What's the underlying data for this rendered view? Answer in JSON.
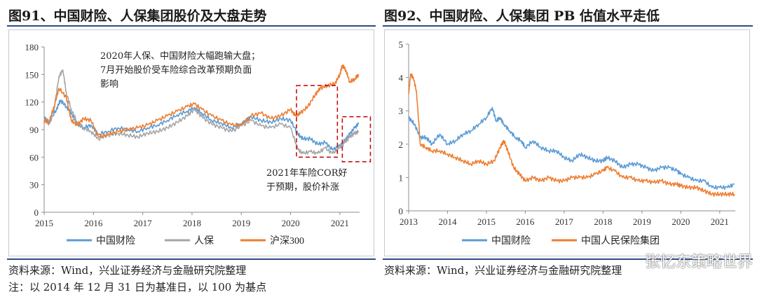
{
  "left": {
    "title": "图91、中国财险、人保集团股价及大盘走势",
    "source": "资料来源：Wind，兴业证券经济与金融研究院整理",
    "note": "注：以 2014 年 12 月 31 日为基准日，以 100 为基点",
    "annotation1": [
      "2020年人保、中国财险大幅跑输大盘；",
      "7月开始股价受车险综合改革预期负面",
      "影响"
    ],
    "annotation2": [
      "2021年车险COR好",
      "于预期，股价补涨"
    ]
  },
  "right": {
    "title": "图92、中国财险、人保集团 PB 估值水平走低",
    "source": "资料来源：Wind，兴业证券经济与金融研究院整理"
  },
  "watermark": "张忆东策略世界",
  "colors": {
    "blue": "#5b9bd5",
    "gray": "#a5a5a5",
    "orange": "#ed7d31",
    "highlight": "#c00000"
  },
  "chart_data": [
    {
      "type": "line",
      "title": "图91、中国财险、人保集团股价及大盘走势",
      "x_ticks": [
        "2015",
        "2016",
        "2017",
        "2018",
        "2019",
        "2020",
        "2021"
      ],
      "xlim": [
        2015.0,
        2021.4
      ],
      "ylim": [
        0,
        180
      ],
      "y_ticks": [
        0,
        30,
        60,
        90,
        120,
        150,
        180
      ],
      "legend_position": "bottom",
      "series": [
        {
          "name": "中国财险",
          "color": "#5b9bd5",
          "x": [
            2015.0,
            2015.1,
            2015.25,
            2015.33,
            2015.45,
            2015.55,
            2015.67,
            2015.8,
            2015.95,
            2016.1,
            2016.3,
            2016.5,
            2016.7,
            2016.9,
            2017.1,
            2017.3,
            2017.5,
            2017.7,
            2017.9,
            2018.05,
            2018.2,
            2018.4,
            2018.6,
            2018.8,
            2019.0,
            2019.2,
            2019.4,
            2019.6,
            2019.8,
            2020.0,
            2020.15,
            2020.25,
            2020.4,
            2020.55,
            2020.7,
            2020.85,
            2021.0,
            2021.1,
            2021.2,
            2021.3,
            2021.38
          ],
          "y": [
            103,
            98,
            112,
            122,
            115,
            108,
            96,
            92,
            95,
            85,
            88,
            92,
            90,
            88,
            92,
            95,
            100,
            106,
            110,
            114,
            108,
            100,
            97,
            92,
            96,
            104,
            100,
            98,
            102,
            100,
            85,
            80,
            80,
            74,
            76,
            68,
            72,
            78,
            85,
            92,
            96
          ]
        },
        {
          "name": "人保",
          "color": "#a5a5a5",
          "x": [
            2015.0,
            2015.1,
            2015.2,
            2015.3,
            2015.38,
            2015.45,
            2015.55,
            2015.67,
            2015.8,
            2015.95,
            2016.1,
            2016.3,
            2016.5,
            2016.7,
            2016.9,
            2017.1,
            2017.3,
            2017.5,
            2017.7,
            2017.9,
            2018.05,
            2018.2,
            2018.4,
            2018.6,
            2018.8,
            2019.0,
            2019.2,
            2019.4,
            2019.6,
            2019.8,
            2020.0,
            2020.15,
            2020.25,
            2020.4,
            2020.55,
            2020.7,
            2020.85,
            2021.0,
            2021.1,
            2021.2,
            2021.3,
            2021.38
          ],
          "y": [
            102,
            96,
            112,
            148,
            155,
            130,
            112,
            98,
            92,
            88,
            80,
            84,
            86,
            84,
            82,
            86,
            88,
            92,
            98,
            105,
            112,
            104,
            96,
            92,
            88,
            94,
            100,
            94,
            92,
            96,
            92,
            68,
            64,
            66,
            64,
            70,
            64,
            70,
            76,
            82,
            86,
            88
          ]
        },
        {
          "name": "沪深300",
          "color": "#ed7d31",
          "x": [
            2015.0,
            2015.1,
            2015.2,
            2015.3,
            2015.45,
            2015.55,
            2015.67,
            2015.8,
            2015.95,
            2016.1,
            2016.3,
            2016.5,
            2016.7,
            2016.9,
            2017.1,
            2017.3,
            2017.5,
            2017.7,
            2017.9,
            2018.05,
            2018.2,
            2018.4,
            2018.6,
            2018.8,
            2019.0,
            2019.2,
            2019.4,
            2019.6,
            2019.8,
            2020.0,
            2020.1,
            2020.2,
            2020.35,
            2020.5,
            2020.6,
            2020.75,
            2020.9,
            2021.0,
            2021.05,
            2021.12,
            2021.2,
            2021.3,
            2021.38
          ],
          "y": [
            100,
            98,
            115,
            135,
            125,
            100,
            95,
            102,
            100,
            82,
            85,
            88,
            90,
            92,
            95,
            100,
            105,
            110,
            115,
            118,
            112,
            105,
            100,
            95,
            95,
            105,
            108,
            102,
            105,
            112,
            105,
            108,
            115,
            128,
            135,
            138,
            140,
            150,
            160,
            155,
            142,
            145,
            150
          ]
        }
      ]
    },
    {
      "type": "line",
      "title": "图92、中国财险、人保集团 PB 估值水平走低",
      "x_ticks": [
        "2013",
        "2014",
        "2015",
        "2016",
        "2017",
        "2018",
        "2019",
        "2020",
        "2021"
      ],
      "xlim": [
        2013.0,
        2021.4
      ],
      "ylim": [
        0,
        5
      ],
      "y_ticks": [
        0,
        1,
        2,
        3,
        4,
        5
      ],
      "legend_position": "bottom",
      "series": [
        {
          "name": "中国财险",
          "color": "#5b9bd5",
          "x": [
            2013.0,
            2013.15,
            2013.3,
            2013.45,
            2013.6,
            2013.8,
            2014.0,
            2014.2,
            2014.4,
            2014.6,
            2014.8,
            2015.0,
            2015.15,
            2015.25,
            2015.35,
            2015.45,
            2015.6,
            2015.75,
            2015.9,
            2016.0,
            2016.2,
            2016.4,
            2016.6,
            2016.8,
            2017.0,
            2017.2,
            2017.4,
            2017.6,
            2017.8,
            2018.0,
            2018.1,
            2018.3,
            2018.5,
            2018.7,
            2018.9,
            2019.1,
            2019.3,
            2019.5,
            2019.7,
            2019.9,
            2020.0,
            2020.2,
            2020.4,
            2020.6,
            2020.8,
            2021.0,
            2021.2,
            2021.38
          ],
          "y": [
            2.8,
            2.6,
            2.2,
            2.2,
            2.0,
            2.3,
            2.0,
            2.1,
            2.3,
            2.4,
            2.6,
            2.8,
            3.1,
            2.7,
            2.8,
            2.6,
            2.4,
            2.2,
            2.1,
            1.9,
            2.1,
            1.9,
            1.8,
            1.8,
            1.6,
            1.5,
            1.7,
            1.6,
            1.5,
            1.5,
            1.6,
            1.5,
            1.3,
            1.4,
            1.4,
            1.3,
            1.2,
            1.3,
            1.3,
            1.2,
            1.1,
            1.0,
            0.9,
            0.9,
            0.7,
            0.7,
            0.7,
            0.8
          ]
        },
        {
          "name": "中国人民保险集团",
          "color": "#ed7d31",
          "x": [
            2013.0,
            2013.05,
            2013.12,
            2013.2,
            2013.3,
            2013.45,
            2013.6,
            2013.8,
            2014.0,
            2014.2,
            2014.4,
            2014.6,
            2014.8,
            2015.0,
            2015.2,
            2015.35,
            2015.45,
            2015.55,
            2015.7,
            2015.85,
            2016.0,
            2016.2,
            2016.4,
            2016.6,
            2016.8,
            2017.0,
            2017.2,
            2017.4,
            2017.6,
            2017.8,
            2018.0,
            2018.1,
            2018.3,
            2018.5,
            2018.7,
            2018.9,
            2019.1,
            2019.3,
            2019.5,
            2019.7,
            2019.9,
            2020.0,
            2020.2,
            2020.4,
            2020.6,
            2020.8,
            2021.0,
            2021.2,
            2021.38
          ],
          "y": [
            3.5,
            4.1,
            4.0,
            3.6,
            2.0,
            1.9,
            1.8,
            1.8,
            1.7,
            1.6,
            1.5,
            1.4,
            1.5,
            1.4,
            1.5,
            1.9,
            2.1,
            1.8,
            1.3,
            1.1,
            0.9,
            1.0,
            0.9,
            1.0,
            0.9,
            0.9,
            1.0,
            1.0,
            1.0,
            1.1,
            1.2,
            1.3,
            1.2,
            1.0,
            1.0,
            0.9,
            0.9,
            0.85,
            0.9,
            0.8,
            0.8,
            0.75,
            0.7,
            0.7,
            0.6,
            0.5,
            0.5,
            0.5,
            0.5
          ]
        }
      ]
    }
  ]
}
